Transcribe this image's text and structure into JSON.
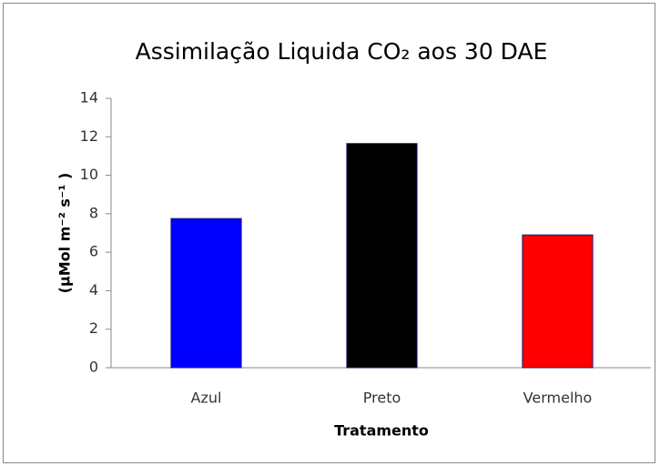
{
  "chart_data": {
    "type": "bar",
    "title": "Assimilação Liquida CO₂ aos 30 DAE",
    "x_label": "Tratamento",
    "y_label": "(µMol m⁻² s⁻¹ )",
    "categories": [
      "Azul",
      "Preto",
      "Vermelho"
    ],
    "values": [
      7.75,
      11.65,
      6.9
    ],
    "colors": [
      "#0000ff",
      "#000000",
      "#ff0000"
    ],
    "ylim": [
      0,
      14
    ],
    "yticks": [
      0,
      2,
      4,
      6,
      8,
      10,
      12,
      14
    ],
    "grid": false
  }
}
